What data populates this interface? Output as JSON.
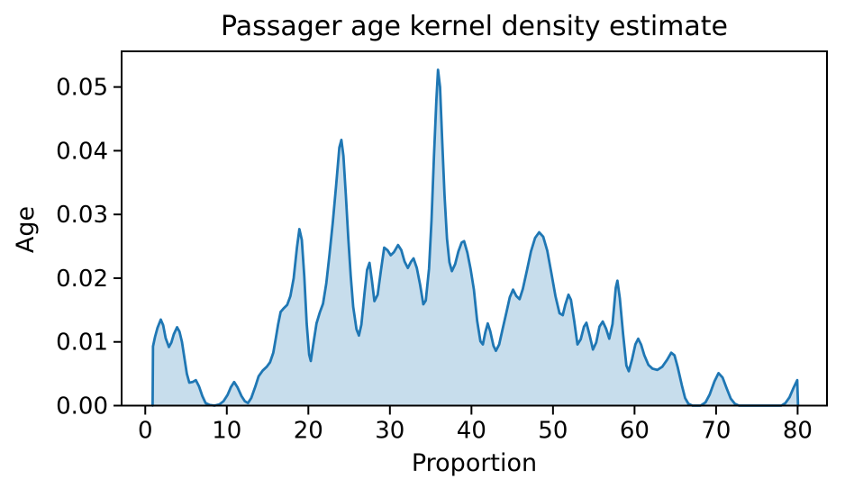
{
  "chart_data": {
    "type": "area",
    "title": "Passager age kernel density estimate",
    "xlabel": "Proportion",
    "ylabel": "Age",
    "xlim": [
      -2.9,
      83.6
    ],
    "ylim": [
      0,
      0.0556
    ],
    "grid": false,
    "legend": "none",
    "line_color": "#1f77b4",
    "fill_color": "#1f77b4",
    "fill_opacity": 0.25,
    "xticks": {
      "values": [
        0,
        10,
        20,
        30,
        40,
        50,
        60,
        70,
        80
      ],
      "labels": [
        "0",
        "10",
        "20",
        "30",
        "40",
        "50",
        "60",
        "70",
        "80"
      ]
    },
    "yticks": {
      "values": [
        0,
        0.01,
        0.02,
        0.03,
        0.04,
        0.05
      ],
      "labels": [
        "0.00",
        "0.01",
        "0.02",
        "0.03",
        "0.04",
        "0.05"
      ]
    },
    "points": [
      [
        0.9,
        0
      ],
      [
        0.95,
        0.0093
      ],
      [
        1.2,
        0.0108
      ],
      [
        1.5,
        0.0122
      ],
      [
        1.9,
        0.0135
      ],
      [
        2.2,
        0.0126
      ],
      [
        2.5,
        0.0106
      ],
      [
        2.9,
        0.0092
      ],
      [
        3.2,
        0.0099
      ],
      [
        3.5,
        0.0112
      ],
      [
        3.9,
        0.0123
      ],
      [
        4.2,
        0.0116
      ],
      [
        4.5,
        0.01
      ],
      [
        4.8,
        0.0075
      ],
      [
        5.1,
        0.005
      ],
      [
        5.4,
        0.0036
      ],
      [
        5.8,
        0.0037
      ],
      [
        6.2,
        0.004
      ],
      [
        6.6,
        0.003
      ],
      [
        7.0,
        0.0015
      ],
      [
        7.4,
        0.0004
      ],
      [
        7.9,
        0.0001
      ],
      [
        8.5,
        0.0
      ],
      [
        9.1,
        0.0002
      ],
      [
        9.6,
        0.0007
      ],
      [
        10.1,
        0.0017
      ],
      [
        10.5,
        0.0029
      ],
      [
        10.9,
        0.0037
      ],
      [
        11.3,
        0.0029
      ],
      [
        11.8,
        0.0015
      ],
      [
        12.2,
        0.0007
      ],
      [
        12.6,
        0.0004
      ],
      [
        13.0,
        0.0012
      ],
      [
        13.5,
        0.003
      ],
      [
        13.9,
        0.0046
      ],
      [
        14.4,
        0.0055
      ],
      [
        14.9,
        0.0061
      ],
      [
        15.3,
        0.0068
      ],
      [
        15.7,
        0.0083
      ],
      [
        16.0,
        0.0105
      ],
      [
        16.3,
        0.0128
      ],
      [
        16.6,
        0.0147
      ],
      [
        17.0,
        0.0153
      ],
      [
        17.4,
        0.0158
      ],
      [
        17.8,
        0.0172
      ],
      [
        18.2,
        0.02
      ],
      [
        18.6,
        0.0248
      ],
      [
        18.9,
        0.0277
      ],
      [
        19.2,
        0.026
      ],
      [
        19.5,
        0.0203
      ],
      [
        19.8,
        0.0128
      ],
      [
        20.1,
        0.008
      ],
      [
        20.3,
        0.007
      ],
      [
        20.6,
        0.0096
      ],
      [
        21.0,
        0.0129
      ],
      [
        21.4,
        0.0146
      ],
      [
        21.8,
        0.016
      ],
      [
        22.2,
        0.0192
      ],
      [
        22.6,
        0.0238
      ],
      [
        23.0,
        0.0288
      ],
      [
        23.4,
        0.0345
      ],
      [
        23.8,
        0.0405
      ],
      [
        24.05,
        0.0417
      ],
      [
        24.3,
        0.0392
      ],
      [
        24.6,
        0.033
      ],
      [
        24.9,
        0.0262
      ],
      [
        25.2,
        0.0203
      ],
      [
        25.5,
        0.0155
      ],
      [
        25.9,
        0.012
      ],
      [
        26.2,
        0.011
      ],
      [
        26.5,
        0.0127
      ],
      [
        26.9,
        0.0178
      ],
      [
        27.2,
        0.0213
      ],
      [
        27.5,
        0.0224
      ],
      [
        27.8,
        0.0196
      ],
      [
        28.1,
        0.0164
      ],
      [
        28.5,
        0.0174
      ],
      [
        28.9,
        0.0212
      ],
      [
        29.3,
        0.0248
      ],
      [
        29.7,
        0.0244
      ],
      [
        30.1,
        0.0236
      ],
      [
        30.5,
        0.0241
      ],
      [
        31.0,
        0.0252
      ],
      [
        31.4,
        0.0244
      ],
      [
        31.8,
        0.0226
      ],
      [
        32.2,
        0.0216
      ],
      [
        32.6,
        0.0226
      ],
      [
        32.9,
        0.0231
      ],
      [
        33.3,
        0.0216
      ],
      [
        33.7,
        0.019
      ],
      [
        34.1,
        0.0159
      ],
      [
        34.4,
        0.0165
      ],
      [
        34.8,
        0.0215
      ],
      [
        35.1,
        0.029
      ],
      [
        35.4,
        0.039
      ],
      [
        35.7,
        0.048
      ],
      [
        35.9,
        0.0527
      ],
      [
        36.15,
        0.05
      ],
      [
        36.4,
        0.042
      ],
      [
        36.7,
        0.033
      ],
      [
        37.0,
        0.0262
      ],
      [
        37.3,
        0.0225
      ],
      [
        37.6,
        0.0211
      ],
      [
        38.0,
        0.0222
      ],
      [
        38.4,
        0.0242
      ],
      [
        38.8,
        0.0256
      ],
      [
        39.1,
        0.0258
      ],
      [
        39.5,
        0.024
      ],
      [
        39.9,
        0.0214
      ],
      [
        40.3,
        0.0182
      ],
      [
        40.7,
        0.0133
      ],
      [
        41.1,
        0.0101
      ],
      [
        41.4,
        0.0096
      ],
      [
        41.7,
        0.0115
      ],
      [
        42.0,
        0.0129
      ],
      [
        42.3,
        0.0117
      ],
      [
        42.7,
        0.0094
      ],
      [
        43.0,
        0.0086
      ],
      [
        43.4,
        0.0096
      ],
      [
        43.8,
        0.0119
      ],
      [
        44.3,
        0.0147
      ],
      [
        44.7,
        0.017
      ],
      [
        45.1,
        0.0182
      ],
      [
        45.5,
        0.0172
      ],
      [
        45.9,
        0.0167
      ],
      [
        46.3,
        0.0183
      ],
      [
        46.8,
        0.0212
      ],
      [
        47.3,
        0.0242
      ],
      [
        47.8,
        0.0263
      ],
      [
        48.3,
        0.0272
      ],
      [
        48.8,
        0.0265
      ],
      [
        49.3,
        0.0243
      ],
      [
        49.8,
        0.0208
      ],
      [
        50.3,
        0.0172
      ],
      [
        50.8,
        0.0145
      ],
      [
        51.2,
        0.0142
      ],
      [
        51.5,
        0.0158
      ],
      [
        51.9,
        0.0174
      ],
      [
        52.2,
        0.0166
      ],
      [
        52.6,
        0.0133
      ],
      [
        53.0,
        0.0096
      ],
      [
        53.4,
        0.0104
      ],
      [
        53.8,
        0.0124
      ],
      [
        54.1,
        0.013
      ],
      [
        54.5,
        0.011
      ],
      [
        54.9,
        0.0088
      ],
      [
        55.3,
        0.0099
      ],
      [
        55.7,
        0.0124
      ],
      [
        56.1,
        0.0132
      ],
      [
        56.5,
        0.0121
      ],
      [
        56.9,
        0.0105
      ],
      [
        57.3,
        0.0128
      ],
      [
        57.7,
        0.0185
      ],
      [
        57.9,
        0.0196
      ],
      [
        58.2,
        0.0168
      ],
      [
        58.6,
        0.0112
      ],
      [
        59.0,
        0.0063
      ],
      [
        59.3,
        0.0054
      ],
      [
        59.7,
        0.0073
      ],
      [
        60.1,
        0.0096
      ],
      [
        60.45,
        0.0105
      ],
      [
        60.8,
        0.0096
      ],
      [
        61.2,
        0.0079
      ],
      [
        61.7,
        0.0064
      ],
      [
        62.2,
        0.0058
      ],
      [
        62.8,
        0.0056
      ],
      [
        63.4,
        0.0061
      ],
      [
        64.0,
        0.0072
      ],
      [
        64.5,
        0.0083
      ],
      [
        64.9,
        0.0079
      ],
      [
        65.3,
        0.006
      ],
      [
        65.8,
        0.0032
      ],
      [
        66.2,
        0.0012
      ],
      [
        66.6,
        0.0003
      ],
      [
        67.1,
        0.0
      ],
      [
        68.1,
        0.0
      ],
      [
        68.7,
        0.0005
      ],
      [
        69.2,
        0.0017
      ],
      [
        69.8,
        0.0038
      ],
      [
        70.3,
        0.0051
      ],
      [
        70.8,
        0.0044
      ],
      [
        71.3,
        0.0027
      ],
      [
        71.8,
        0.0011
      ],
      [
        72.3,
        0.0003
      ],
      [
        72.8,
        0.0
      ],
      [
        74.5,
        0.0
      ],
      [
        76.5,
        0.0
      ],
      [
        78.0,
        0.0
      ],
      [
        78.5,
        0.0004
      ],
      [
        79.0,
        0.0013
      ],
      [
        79.5,
        0.0028
      ],
      [
        79.95,
        0.004
      ],
      [
        80.05,
        0.0
      ]
    ]
  }
}
